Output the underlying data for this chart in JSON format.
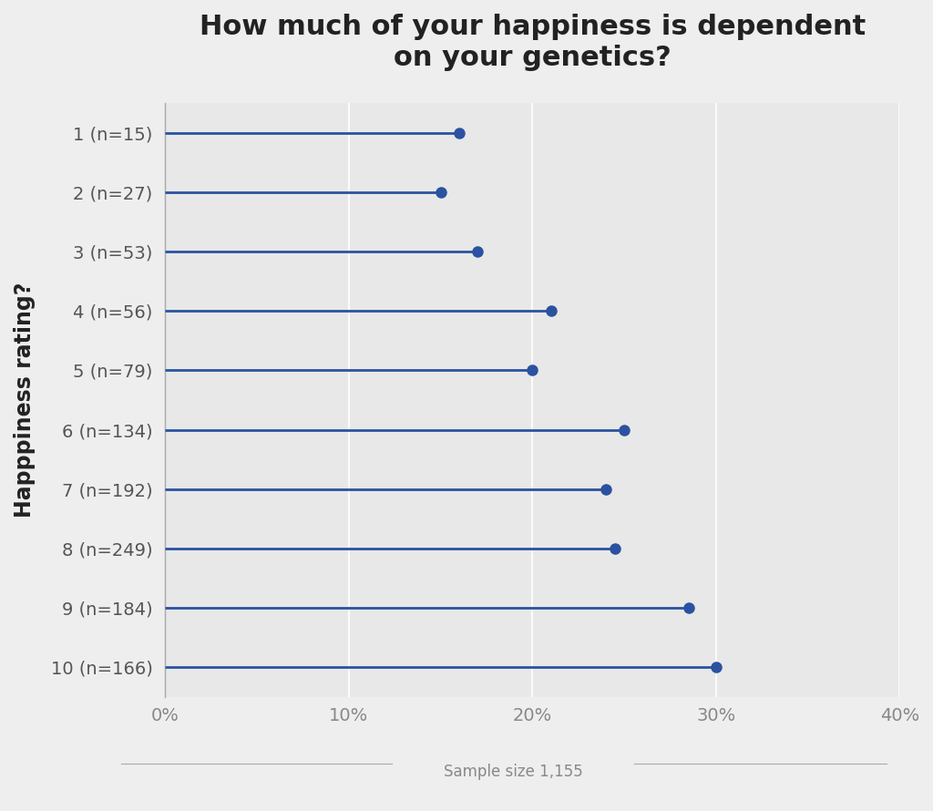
{
  "title": "How much of your happiness is dependent\non your genetics?",
  "ylabel": "Happpiness rating?",
  "xlabel_bottom": "Sample size 1,155",
  "categories": [
    "1 (n=15)",
    "2 (n=27)",
    "3 (n=53)",
    "4 (n=56)",
    "5 (n=79)",
    "6 (n=134)",
    "7 (n=192)",
    "8 (n=249)",
    "9 (n=184)",
    "10 (n=166)"
  ],
  "values": [
    16.0,
    15.0,
    17.0,
    21.0,
    20.0,
    25.0,
    24.0,
    24.5,
    28.5,
    30.0
  ],
  "xlim": [
    0,
    40
  ],
  "xticks": [
    0,
    10,
    20,
    30,
    40
  ],
  "xtick_labels": [
    "0%",
    "10%",
    "20%",
    "30%",
    "40%"
  ],
  "dot_color": "#2a52a0",
  "line_color": "#2a52a0",
  "background_color": "#eeeeee",
  "plot_background_color": "#e8e8e8",
  "grid_color": "#ffffff",
  "title_fontsize": 22,
  "tick_fontsize": 14,
  "ylabel_fontsize": 17,
  "sample_size_fontsize": 12
}
